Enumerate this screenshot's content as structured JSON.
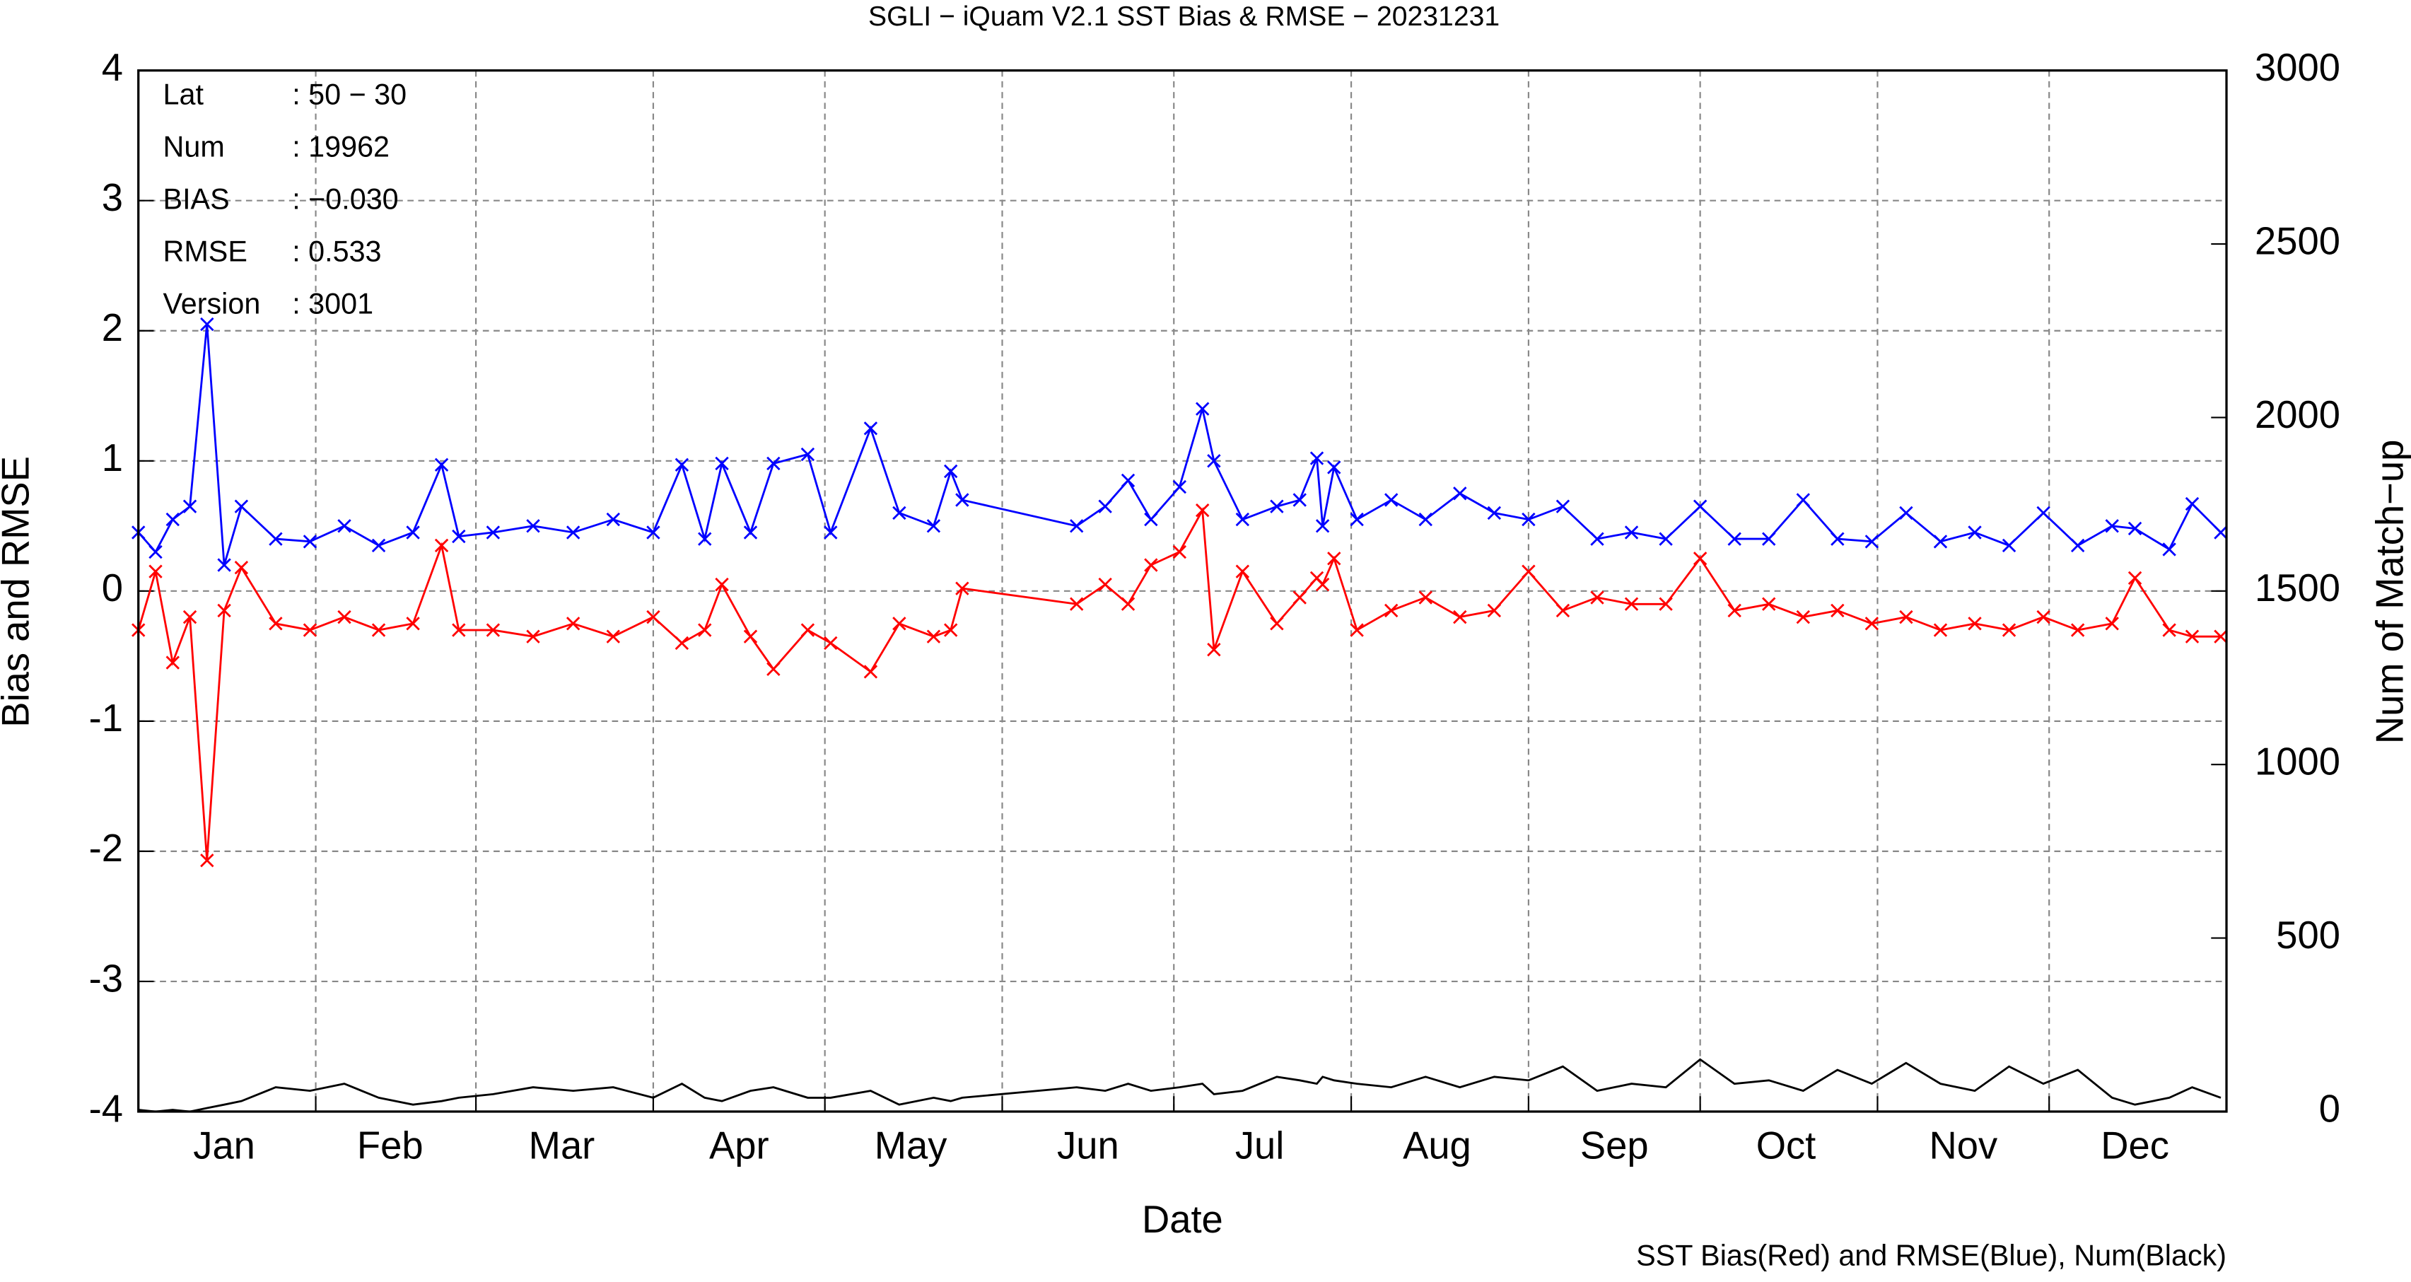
{
  "chart_data": {
    "type": "line",
    "title": "SGLI − iQuam V2.1 SST Bias & RMSE  − 20231231",
    "xlabel": "Date",
    "ylabel": "Bias and RMSE",
    "y2label": "Num of Match−up",
    "footnote": "SST Bias(Red) and RMSE(Blue), Num(Black)",
    "info": [
      {
        "label": "Lat",
        "value": ": 50 − 30"
      },
      {
        "label": "Num",
        "value": ": 19962"
      },
      {
        "label": "BIAS",
        "value": ": −0.030"
      },
      {
        "label": "RMSE",
        "value": ": 0.533"
      },
      {
        "label": "Version",
        "value": ": 3001"
      }
    ],
    "xlim": [
      1,
      366
    ],
    "xticks": [
      {
        "value": 16,
        "label": "Jan"
      },
      {
        "value": 45,
        "label": "Feb"
      },
      {
        "value": 75,
        "label": "Mar"
      },
      {
        "value": 106,
        "label": "Apr"
      },
      {
        "value": 136,
        "label": "May"
      },
      {
        "value": 167,
        "label": "Jun"
      },
      {
        "value": 197,
        "label": "Jul"
      },
      {
        "value": 228,
        "label": "Aug"
      },
      {
        "value": 259,
        "label": "Sep"
      },
      {
        "value": 289,
        "label": "Oct"
      },
      {
        "value": 320,
        "label": "Nov"
      },
      {
        "value": 350,
        "label": "Dec"
      }
    ],
    "xgrid": [
      32,
      60,
      91,
      121,
      152,
      182,
      213,
      244,
      274,
      305,
      335
    ],
    "ylim": [
      -4,
      4
    ],
    "yticks": [
      -4,
      -3,
      -2,
      -1,
      0,
      1,
      2,
      3,
      4
    ],
    "y2lim": [
      0,
      3000
    ],
    "y2ticks": [
      0,
      500,
      1000,
      1500,
      2000,
      2500,
      3000
    ],
    "grid": true,
    "x": [
      1,
      4,
      7,
      10,
      13,
      16,
      19,
      25,
      31,
      37,
      43,
      49,
      54,
      57,
      63,
      70,
      77,
      84,
      91,
      96,
      100,
      103,
      108,
      112,
      118,
      122,
      129,
      134,
      140,
      143,
      145,
      165,
      170,
      174,
      178,
      183,
      187,
      189,
      194,
      200,
      204,
      207,
      208,
      210,
      214,
      220,
      226,
      232,
      238,
      244,
      250,
      256,
      262,
      268,
      274,
      280,
      286,
      292,
      298,
      304,
      310,
      316,
      322,
      328,
      334,
      340,
      346,
      350,
      356,
      360,
      365
    ],
    "series": [
      {
        "name": "RMSE",
        "color": "#0000ff",
        "marker": "x",
        "values": [
          0.45,
          0.3,
          0.55,
          0.65,
          2.05,
          0.2,
          0.65,
          0.4,
          0.38,
          0.5,
          0.35,
          0.45,
          0.97,
          0.42,
          0.45,
          0.5,
          0.45,
          0.55,
          0.45,
          0.97,
          0.4,
          0.98,
          0.45,
          0.98,
          1.05,
          0.45,
          1.25,
          0.6,
          0.5,
          0.92,
          0.7,
          0.5,
          0.65,
          0.85,
          0.55,
          0.8,
          1.4,
          1.0,
          0.55,
          0.65,
          0.7,
          1.02,
          0.5,
          0.95,
          0.55,
          0.7,
          0.55,
          0.75,
          0.6,
          0.55,
          0.65,
          0.4,
          0.45,
          0.4,
          0.65,
          0.4,
          0.4,
          0.7,
          0.4,
          0.38,
          0.6,
          0.38,
          0.45,
          0.35,
          0.6,
          0.35,
          0.5,
          0.48,
          0.32,
          0.67,
          0.45
        ]
      },
      {
        "name": "Bias",
        "color": "#ff0000",
        "marker": "x",
        "values": [
          -0.3,
          0.15,
          -0.55,
          -0.2,
          -2.07,
          -0.15,
          0.18,
          -0.25,
          -0.3,
          -0.2,
          -0.3,
          -0.25,
          0.35,
          -0.3,
          -0.3,
          -0.35,
          -0.25,
          -0.35,
          -0.2,
          -0.4,
          -0.3,
          0.05,
          -0.35,
          -0.6,
          -0.3,
          -0.4,
          -0.62,
          -0.25,
          -0.35,
          -0.3,
          0.02,
          -0.1,
          0.05,
          -0.1,
          0.2,
          0.3,
          0.62,
          -0.45,
          0.15,
          -0.25,
          -0.05,
          0.1,
          0.05,
          0.25,
          -0.3,
          -0.15,
          -0.05,
          -0.2,
          -0.15,
          0.15,
          -0.15,
          -0.05,
          -0.1,
          -0.1,
          0.25,
          -0.15,
          -0.1,
          -0.2,
          -0.15,
          -0.25,
          -0.2,
          -0.3,
          -0.25,
          -0.3,
          -0.2,
          -0.3,
          -0.25,
          0.1,
          -0.3,
          -0.35,
          -0.35
        ]
      },
      {
        "name": "Num",
        "color": "#000000",
        "axis": "y2",
        "values": [
          5,
          0,
          5,
          0,
          10,
          20,
          30,
          70,
          60,
          80,
          40,
          20,
          30,
          40,
          50,
          70,
          60,
          70,
          40,
          80,
          40,
          30,
          60,
          70,
          40,
          40,
          60,
          20,
          40,
          30,
          40,
          70,
          60,
          80,
          60,
          70,
          80,
          50,
          60,
          100,
          90,
          80,
          100,
          90,
          80,
          70,
          100,
          70,
          100,
          90,
          130,
          60,
          80,
          70,
          150,
          80,
          90,
          60,
          120,
          80,
          140,
          80,
          60,
          130,
          80,
          120,
          40,
          20,
          40,
          70,
          40
        ]
      }
    ]
  }
}
